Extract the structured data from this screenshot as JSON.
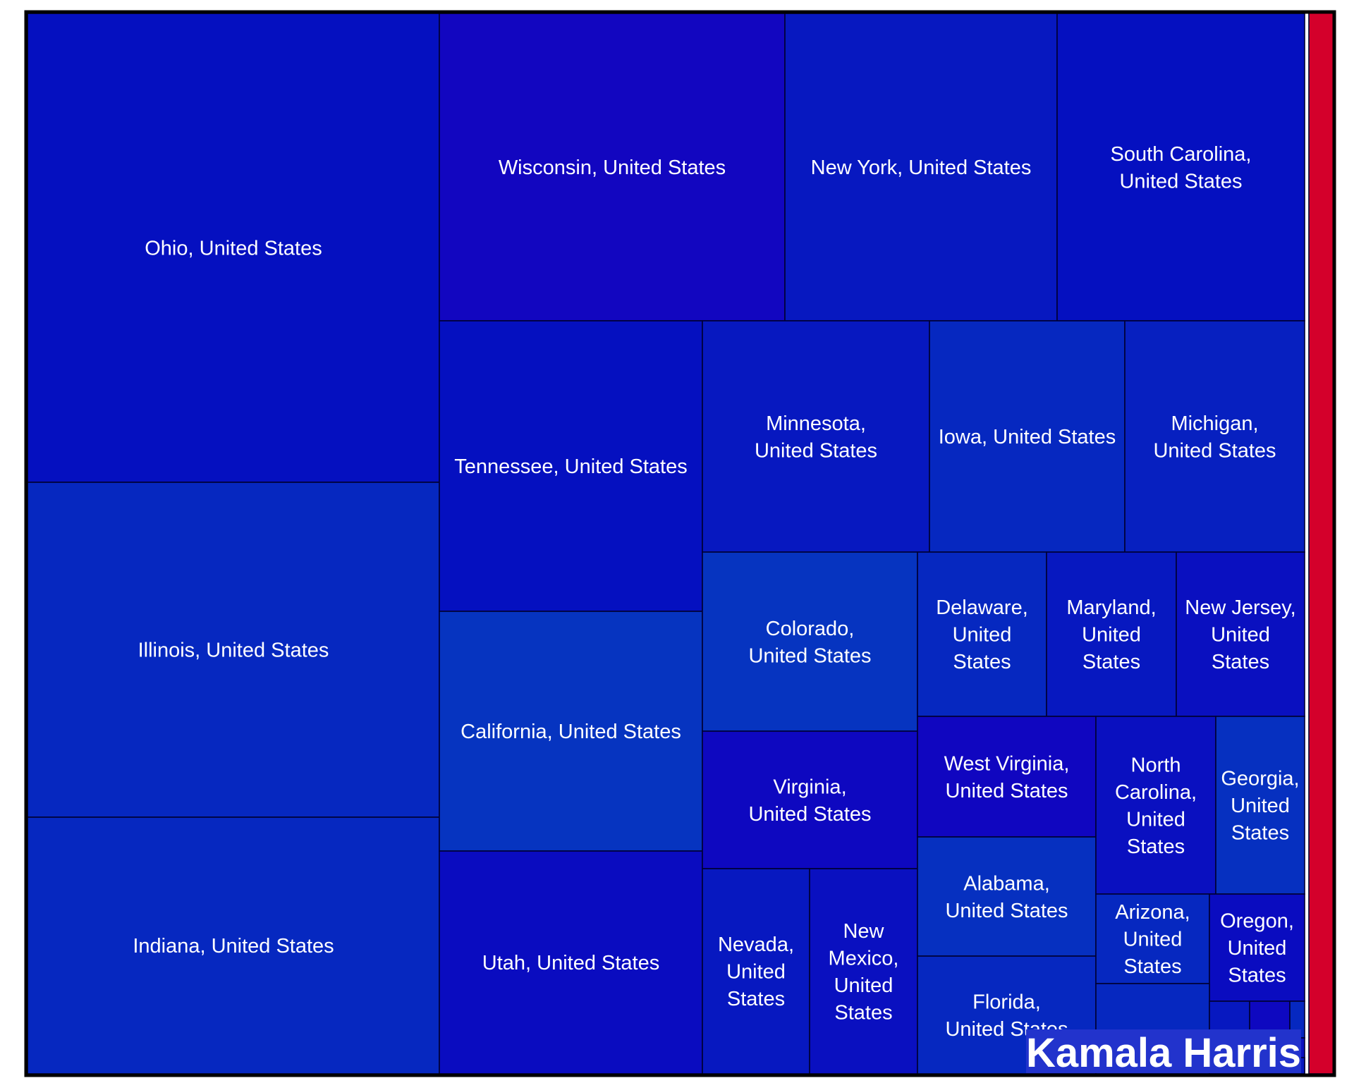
{
  "brand_label": "Kamala Harris",
  "colors": {
    "background": "#ffffff",
    "frame": "#000000",
    "label_text": "#ffffff",
    "other_candidate": "#d4002b"
  },
  "chart_data": {
    "type": "treemap",
    "title": "",
    "groups": [
      {
        "name": "Kamala Harris",
        "color": "#0714c0",
        "share": 0.977
      },
      {
        "name": "",
        "color": "#d4002b",
        "share": 0.023
      }
    ],
    "items": [
      {
        "label": [
          "Ohio, United States"
        ],
        "color": "#0510c0"
      },
      {
        "label": [
          "Illinois, United States"
        ],
        "color": "#0628c0"
      },
      {
        "label": [
          "Indiana, United States"
        ],
        "color": "#0628c0"
      },
      {
        "label": [
          "Wisconsin, United States"
        ],
        "color": "#1206c0"
      },
      {
        "label": [
          "New York, United States"
        ],
        "color": "#0718c0"
      },
      {
        "label": [
          "South Carolina,",
          "United States"
        ],
        "color": "#0510c0"
      },
      {
        "label": [
          "Tennessee, United States"
        ],
        "color": "#0510c0"
      },
      {
        "label": [
          "California, United States"
        ],
        "color": "#0634c0"
      },
      {
        "label": [
          "Utah, United States"
        ],
        "color": "#0a0cc0"
      },
      {
        "label": [
          "Minnesota,",
          "United States"
        ],
        "color": "#0718c0"
      },
      {
        "label": [
          "Iowa, United States"
        ],
        "color": "#0628c0"
      },
      {
        "label": [
          "Michigan,",
          "United States"
        ],
        "color": "#0720c0"
      },
      {
        "label": [
          "Colorado,",
          "United States"
        ],
        "color": "#0634c0"
      },
      {
        "label": [
          "Delaware,",
          "United",
          "States"
        ],
        "color": "#0628c0"
      },
      {
        "label": [
          "Maryland,",
          "United",
          "States"
        ],
        "color": "#0718c0"
      },
      {
        "label": [
          "New Jersey,",
          "United",
          "States"
        ],
        "color": "#0a10c0"
      },
      {
        "label": [
          "Virginia,",
          "United States"
        ],
        "color": "#0e08c0"
      },
      {
        "label": [
          "Nevada,",
          "United",
          "States"
        ],
        "color": "#0718c0"
      },
      {
        "label": [
          "New",
          "Mexico,",
          "United",
          "States"
        ],
        "color": "#0a10c0"
      },
      {
        "label": [
          "West Virginia,",
          "United States"
        ],
        "color": "#1006c0"
      },
      {
        "label": [
          "Alabama,",
          "United States"
        ],
        "color": "#0630c0"
      },
      {
        "label": [
          "Florida,",
          "United States"
        ],
        "color": "#0628c0"
      },
      {
        "label": [
          "North",
          "Carolina,",
          "United",
          "States"
        ],
        "color": "#0a10c0"
      },
      {
        "label": [
          "Georgia,",
          "United",
          "States"
        ],
        "color": "#0630c0"
      },
      {
        "label": [
          "Arizona,",
          "United",
          "States"
        ],
        "color": "#0628c0"
      },
      {
        "label": [
          "Oregon,",
          "United",
          "States"
        ],
        "color": "#0a0cc0"
      },
      {
        "label": [],
        "color": "#0628c0"
      },
      {
        "label": [],
        "color": "#0718c0"
      },
      {
        "label": [],
        "color": "#0e08c0"
      },
      {
        "label": [],
        "color": "#0628c0"
      },
      {
        "label": [],
        "color": "#0a10c0"
      },
      {
        "label": [],
        "color": "#0718c0"
      }
    ]
  }
}
